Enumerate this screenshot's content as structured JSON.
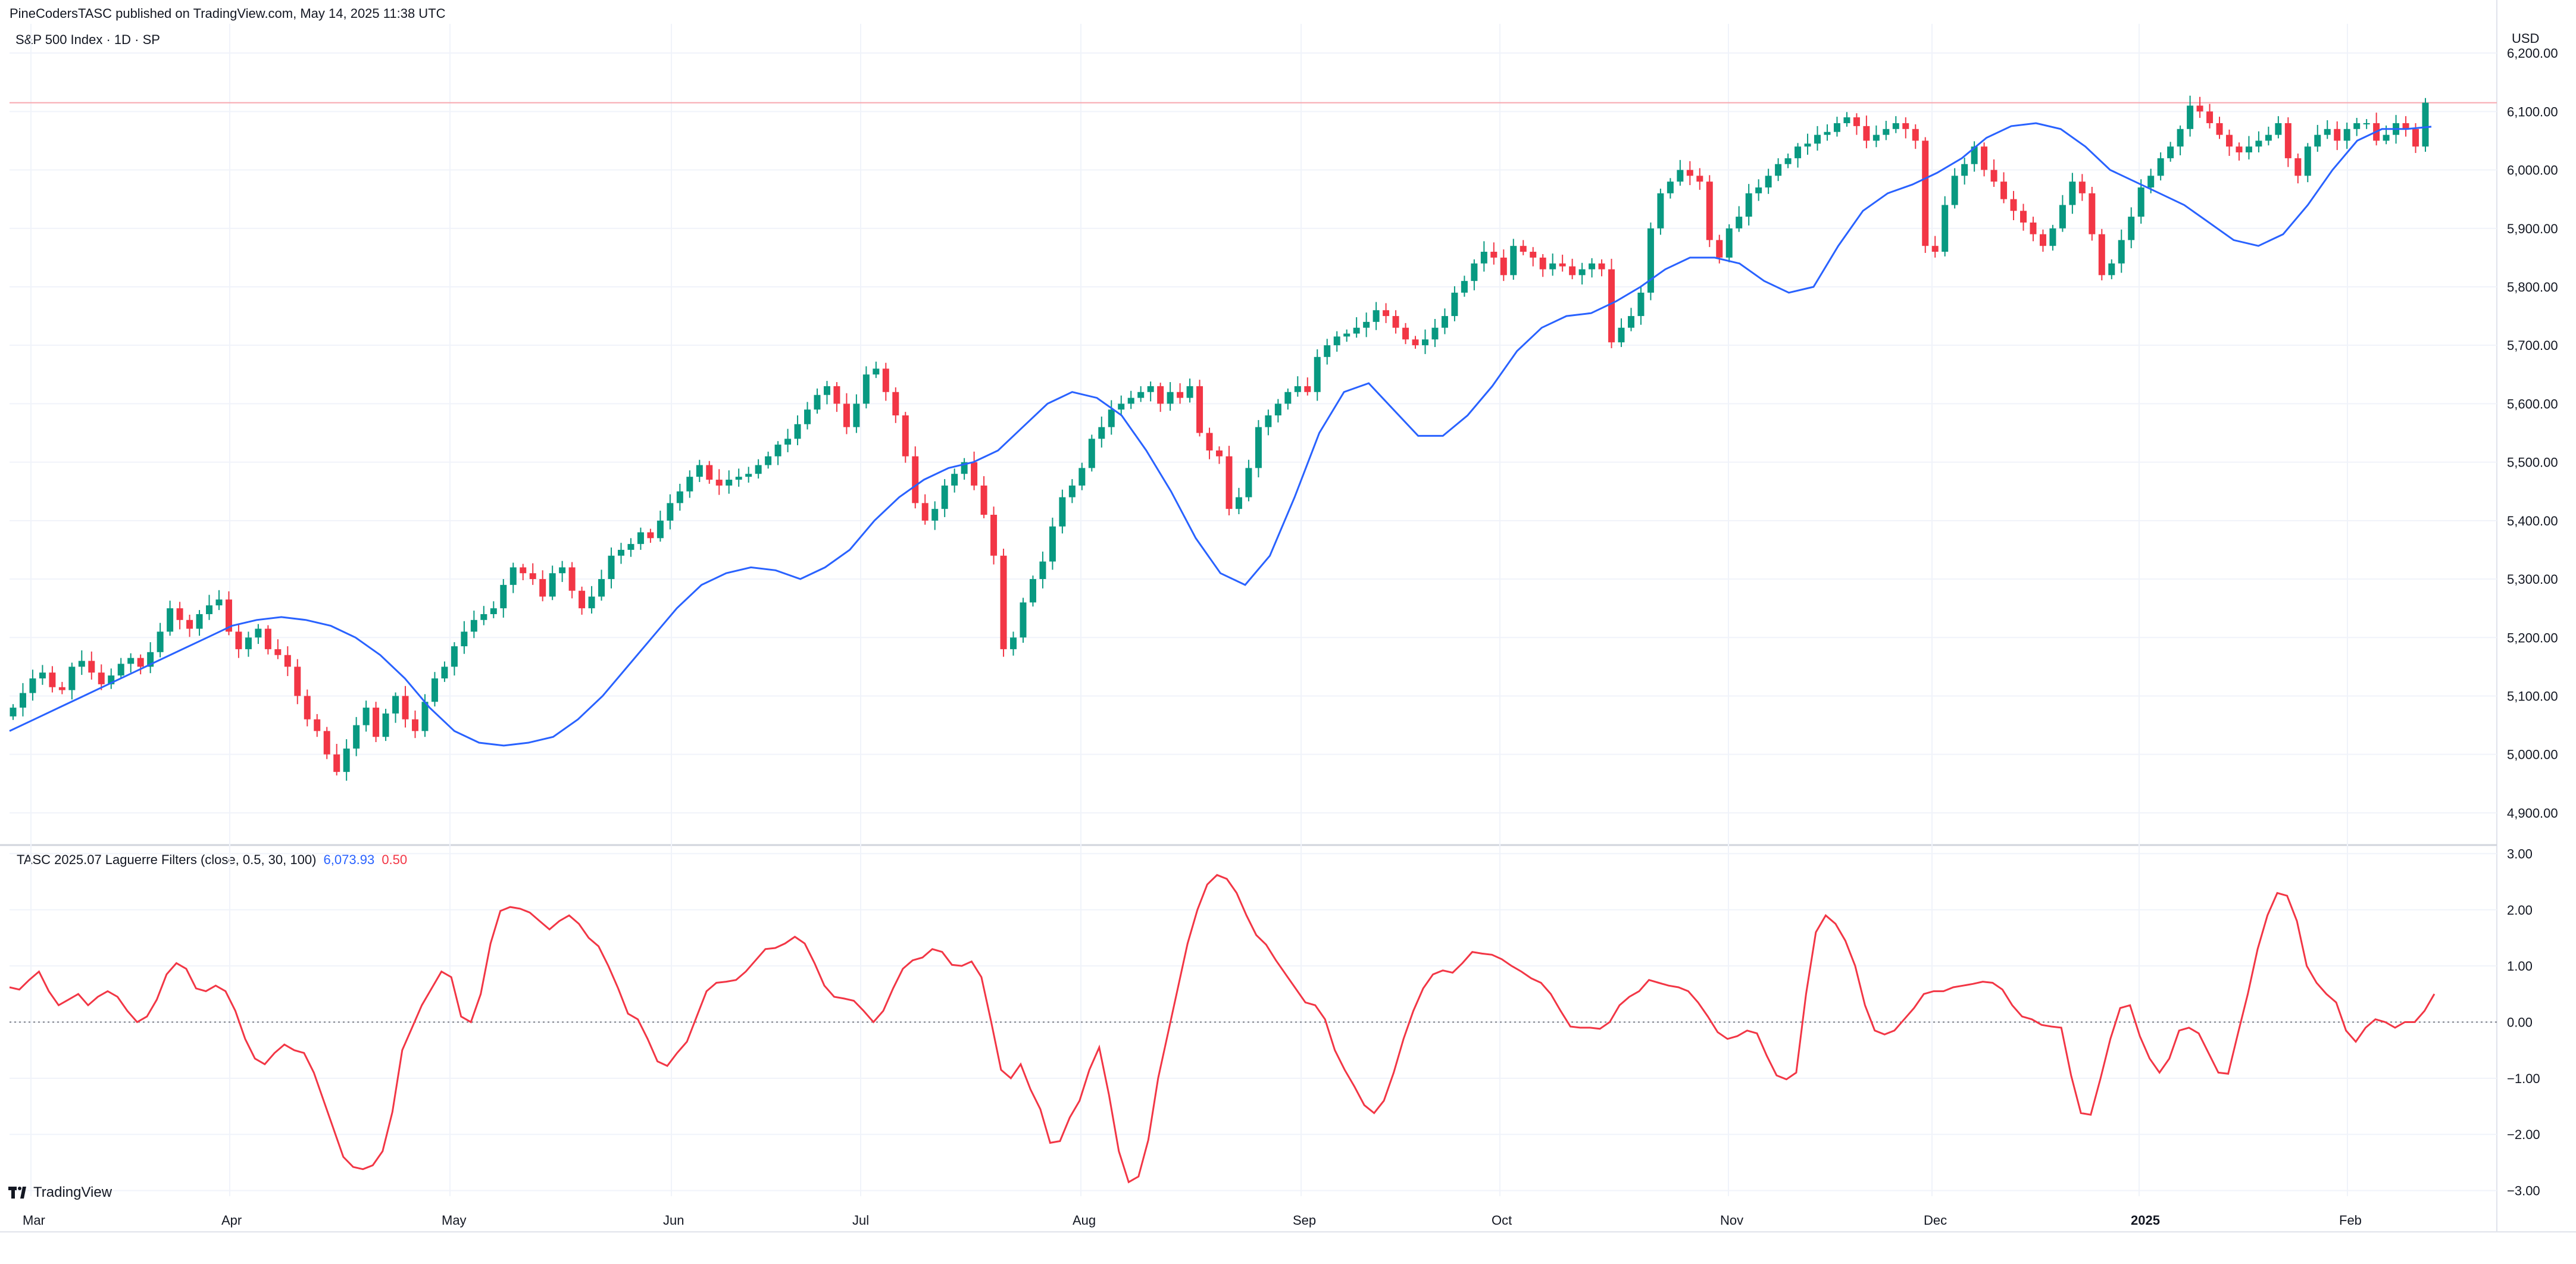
{
  "header": {
    "attribution": "PineCodersTASC published on TradingView.com, May 14, 2025 11:38 UTC",
    "symbol": "S&P 500 Index · 1D · SP"
  },
  "branding": {
    "logo_text": "TradingView",
    "logo_icon": "tradingview-logo-icon"
  },
  "indicator": {
    "name": "TASC 2025.07 Laguerre Filters (close, 0.5, 30, 100)",
    "value1": "6,073.93",
    "value2": "0.50",
    "color1": "#2962ff",
    "color2": "#f23645"
  },
  "colors": {
    "up": "#089981",
    "down": "#f23645",
    "filter": "#2962ff",
    "osc": "#f23645",
    "grid": "#f0f3fa",
    "price_line": "#f7a8af"
  },
  "chart_data": [
    {
      "type": "candlestick",
      "title": "S&P 500 Index · 1D · SP",
      "currency": "USD",
      "y_ticks": [
        "6,200.00",
        "6,100.00",
        "6,000.00",
        "5,900.00",
        "5,800.00",
        "5,700.00",
        "5,600.00",
        "5,500.00",
        "5,400.00",
        "5,300.00",
        "5,200.00",
        "5,100.00",
        "5,000.00",
        "4,900.00"
      ],
      "ylim": [
        4850,
        6250
      ],
      "x_ticks": [
        "Mar",
        "Apr",
        "May",
        "Jun",
        "Jul",
        "Aug",
        "Sep",
        "Oct",
        "Nov",
        "Dec",
        "2025",
        "Feb"
      ],
      "price_line": 6115,
      "series": [
        {
          "name": "close",
          "values": [
            5080,
            5105,
            5130,
            5140,
            5115,
            5110,
            5150,
            5160,
            5140,
            5120,
            5135,
            5155,
            5165,
            5150,
            5175,
            5210,
            5250,
            5230,
            5215,
            5240,
            5255,
            5265,
            5210,
            5180,
            5200,
            5215,
            5180,
            5170,
            5150,
            5100,
            5060,
            5040,
            5000,
            4970,
            5010,
            5050,
            5080,
            5030,
            5070,
            5100,
            5060,
            5040,
            5090,
            5130,
            5150,
            5185,
            5210,
            5230,
            5240,
            5250,
            5290,
            5320,
            5310,
            5300,
            5270,
            5310,
            5320,
            5280,
            5250,
            5270,
            5300,
            5340,
            5350,
            5360,
            5380,
            5370,
            5400,
            5430,
            5450,
            5475,
            5495,
            5470,
            5460,
            5470,
            5475,
            5480,
            5495,
            5510,
            5530,
            5540,
            5565,
            5590,
            5615,
            5630,
            5600,
            5560,
            5600,
            5650,
            5660,
            5620,
            5580,
            5510,
            5430,
            5400,
            5420,
            5460,
            5480,
            5500,
            5460,
            5410,
            5340,
            5180,
            5200,
            5260,
            5300,
            5330,
            5390,
            5440,
            5460,
            5490,
            5540,
            5560,
            5590,
            5600,
            5610,
            5620,
            5630,
            5600,
            5620,
            5610,
            5630,
            5550,
            5520,
            5510,
            5420,
            5440,
            5490,
            5560,
            5580,
            5600,
            5620,
            5630,
            5620,
            5680,
            5700,
            5715,
            5720,
            5730,
            5740,
            5760,
            5750,
            5730,
            5710,
            5700,
            5710,
            5730,
            5750,
            5790,
            5810,
            5840,
            5860,
            5850,
            5820,
            5870,
            5860,
            5850,
            5830,
            5840,
            5835,
            5820,
            5830,
            5840,
            5830,
            5705,
            5730,
            5750,
            5790,
            5900,
            5960,
            5980,
            6000,
            5990,
            5980,
            5880,
            5850,
            5900,
            5920,
            5960,
            5970,
            5990,
            6010,
            6020,
            6040,
            6045,
            6060,
            6065,
            6080,
            6090,
            6075,
            6050,
            6060,
            6070,
            6080,
            6070,
            6050,
            5870,
            5860,
            5940,
            5990,
            6010,
            6040,
            6000,
            5980,
            5950,
            5930,
            5910,
            5890,
            5870,
            5900,
            5940,
            5980,
            5960,
            5890,
            5820,
            5840,
            5880,
            5920,
            5970,
            5990,
            6020,
            6040,
            6070,
            6110,
            6100,
            6080,
            6060,
            6040,
            6030,
            6040,
            6050,
            6060,
            6080,
            6020,
            5990,
            6040,
            6060,
            6070,
            6050,
            6070,
            6080,
            6080,
            6050,
            6060,
            6080,
            6070,
            6040,
            6115
          ]
        },
        {
          "name": "Laguerre filter",
          "values": [
            5040,
            5060,
            5080,
            5100,
            5120,
            5140,
            5160,
            5180,
            5200,
            5220,
            5230,
            5235,
            5230,
            5220,
            5200,
            5170,
            5130,
            5080,
            5040,
            5020,
            5015,
            5020,
            5030,
            5060,
            5100,
            5150,
            5200,
            5250,
            5290,
            5310,
            5320,
            5315,
            5300,
            5320,
            5350,
            5400,
            5440,
            5470,
            5490,
            5500,
            5520,
            5560,
            5600,
            5620,
            5610,
            5580,
            5520,
            5450,
            5370,
            5310,
            5290,
            5340,
            5440,
            5550,
            5620,
            5635,
            5590,
            5545,
            5545,
            5580,
            5630,
            5690,
            5730,
            5750,
            5755,
            5775,
            5800,
            5830,
            5850,
            5850,
            5840,
            5810,
            5790,
            5800,
            5870,
            5930,
            5960,
            5975,
            5995,
            6020,
            6055,
            6075,
            6080,
            6070,
            6040,
            6000,
            5980,
            5960,
            5940,
            5910,
            5880,
            5870,
            5890,
            5940,
            6000,
            6050,
            6070,
            6070,
            6073.93
          ]
        }
      ]
    },
    {
      "type": "line",
      "name": "Laguerre oscillator",
      "y_ticks": [
        "3.00",
        "2.00",
        "1.00",
        "0.00",
        "−1.00",
        "−2.00",
        "−3.00"
      ],
      "ylim": [
        -3.1,
        3.1
      ],
      "zero_line": 0,
      "series": [
        {
          "name": "oscillator",
          "values": [
            0.62,
            0.58,
            0.75,
            0.9,
            0.55,
            0.3,
            0.4,
            0.5,
            0.3,
            0.45,
            0.55,
            0.45,
            0.2,
            0.0,
            0.1,
            0.4,
            0.85,
            1.05,
            0.95,
            0.6,
            0.55,
            0.65,
            0.55,
            0.2,
            -0.3,
            -0.65,
            -0.75,
            -0.55,
            -0.4,
            -0.5,
            -0.55,
            -0.9,
            -1.4,
            -1.9,
            -2.4,
            -2.58,
            -2.62,
            -2.55,
            -2.3,
            -1.6,
            -0.5,
            -0.1,
            0.3,
            0.6,
            0.9,
            0.8,
            0.1,
            0.0,
            0.5,
            1.4,
            1.98,
            2.05,
            2.02,
            1.95,
            1.8,
            1.65,
            1.8,
            1.9,
            1.75,
            1.5,
            1.35,
            1.0,
            0.6,
            0.15,
            0.05,
            -0.3,
            -0.7,
            -0.78,
            -0.55,
            -0.35,
            0.1,
            0.55,
            0.7,
            0.72,
            0.75,
            0.9,
            1.1,
            1.3,
            1.32,
            1.4,
            1.52,
            1.4,
            1.05,
            0.65,
            0.45,
            0.42,
            0.38,
            0.2,
            0.0,
            0.2,
            0.6,
            0.95,
            1.1,
            1.15,
            1.3,
            1.25,
            1.02,
            1.0,
            1.08,
            0.8,
            0.0,
            -0.85,
            -1.0,
            -0.75,
            -1.2,
            -1.55,
            -2.15,
            -2.12,
            -1.7,
            -1.4,
            -0.85,
            -0.45,
            -1.3,
            -2.3,
            -2.85,
            -2.75,
            -2.1,
            -1.0,
            -0.2,
            0.6,
            1.4,
            2.0,
            2.45,
            2.62,
            2.55,
            2.3,
            1.9,
            1.55,
            1.38,
            1.1,
            0.85,
            0.6,
            0.35,
            0.3,
            0.05,
            -0.5,
            -0.85,
            -1.15,
            -1.48,
            -1.62,
            -1.4,
            -0.9,
            -0.3,
            0.2,
            0.6,
            0.85,
            0.92,
            0.88,
            1.05,
            1.25,
            1.22,
            1.2,
            1.12,
            1.0,
            0.9,
            0.78,
            0.7,
            0.5,
            0.2,
            -0.08,
            -0.1,
            -0.1,
            -0.12,
            0.0,
            0.3,
            0.45,
            0.55,
            0.75,
            0.7,
            0.65,
            0.62,
            0.55,
            0.35,
            0.1,
            -0.18,
            -0.3,
            -0.25,
            -0.15,
            -0.2,
            -0.6,
            -0.95,
            -1.02,
            -0.9,
            0.5,
            1.6,
            1.9,
            1.75,
            1.45,
            1.0,
            0.3,
            -0.15,
            -0.22,
            -0.15,
            0.05,
            0.25,
            0.5,
            0.55,
            0.55,
            0.62,
            0.65,
            0.68,
            0.72,
            0.7,
            0.58,
            0.3,
            0.1,
            0.05,
            -0.05,
            -0.08,
            -0.1,
            -0.95,
            -1.62,
            -1.65,
            -1.0,
            -0.3,
            0.25,
            0.3,
            -0.25,
            -0.65,
            -0.9,
            -0.65,
            -0.15,
            -0.1,
            -0.2,
            -0.55,
            -0.9,
            -0.92,
            -0.2,
            0.5,
            1.3,
            1.9,
            2.3,
            2.25,
            1.8,
            1.0,
            0.7,
            0.5,
            0.35,
            -0.15,
            -0.35,
            -0.1,
            0.05,
            0.0,
            -0.1,
            0.0,
            0.0,
            0.2,
            0.5
          ]
        }
      ]
    }
  ]
}
